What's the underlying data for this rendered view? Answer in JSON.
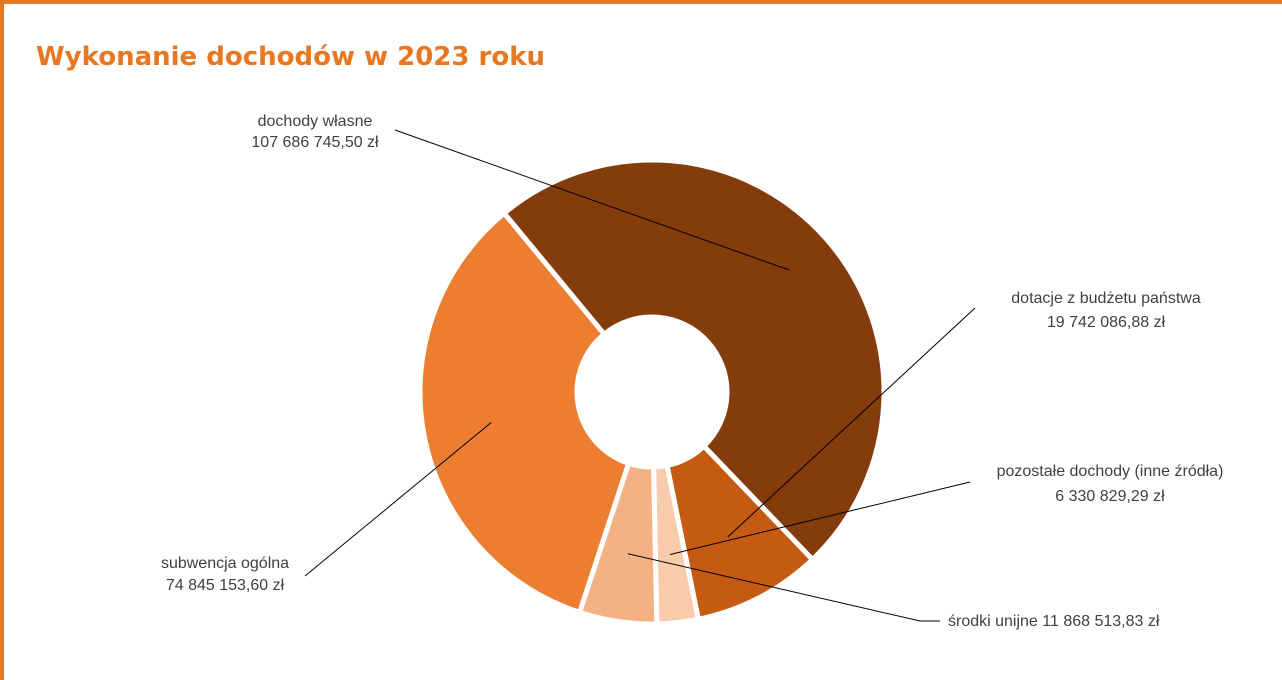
{
  "chart_data": {
    "type": "pie",
    "variant": "doughnut",
    "title": "Wykonanie dochodów w 2023 roku",
    "currency": "zł",
    "slices": [
      {
        "name": "dochody własne",
        "value": 107686745.5,
        "label": "107 686 745,50 zł",
        "color": "#843c0c"
      },
      {
        "name": "dotacje z budżetu państwa",
        "value": 19742086.88,
        "label": "19 742 086,88 zł",
        "color": "#c55a11"
      },
      {
        "name": "pozostałe dochody (inne źródła)",
        "value": 6330829.29,
        "label": "6 330 829,29 zł",
        "color": "#f8cbad"
      },
      {
        "name": "środki unijne",
        "value": 11868513.83,
        "label": "11 868 513,83 zł",
        "color": "#f4b183"
      },
      {
        "name": "subwencja ogólna",
        "value": 74845153.6,
        "label": "74 845 153,60 zł",
        "color": "#ed7d31"
      }
    ]
  }
}
